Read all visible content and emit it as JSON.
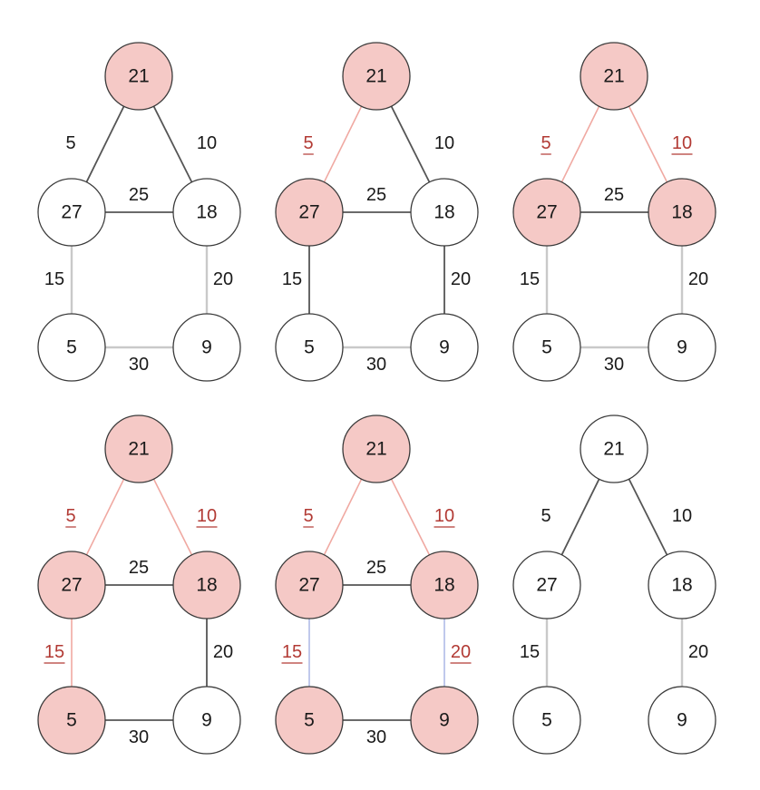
{
  "colors": {
    "visited_fill": "#f5c9c6",
    "unvisited_fill": "#ffffff",
    "node_stroke": "#3a3a3a",
    "text": "#1a1a1a",
    "selected_text": "#b23a34",
    "selected_edge": "#f0a9a2",
    "candidate_edge": "#555555",
    "faint_edge": "#c9c9c9",
    "tie_edge": "#b9c3ea"
  },
  "panels": [
    {
      "nodes": [
        {
          "id": "top",
          "label": "21",
          "visited": true
        },
        {
          "id": "mid-left",
          "label": "27",
          "visited": false
        },
        {
          "id": "mid-right",
          "label": "18",
          "visited": false
        },
        {
          "id": "bottom-left",
          "label": "5",
          "visited": false
        },
        {
          "id": "bottom-right",
          "label": "9",
          "visited": false
        }
      ],
      "edges": [
        {
          "from": "top",
          "to": "mid-left",
          "weight": "5",
          "state": "candidate"
        },
        {
          "from": "top",
          "to": "mid-right",
          "weight": "10",
          "state": "candidate"
        },
        {
          "from": "mid-left",
          "to": "mid-right",
          "weight": "25",
          "state": "candidate"
        },
        {
          "from": "mid-left",
          "to": "bottom-left",
          "weight": "15",
          "state": "faint"
        },
        {
          "from": "mid-right",
          "to": "bottom-right",
          "weight": "20",
          "state": "faint"
        },
        {
          "from": "bottom-left",
          "to": "bottom-right",
          "weight": "30",
          "state": "faint"
        }
      ]
    },
    {
      "nodes": [
        {
          "id": "top",
          "label": "21",
          "visited": true
        },
        {
          "id": "mid-left",
          "label": "27",
          "visited": true
        },
        {
          "id": "mid-right",
          "label": "18",
          "visited": false
        },
        {
          "id": "bottom-left",
          "label": "5",
          "visited": false
        },
        {
          "id": "bottom-right",
          "label": "9",
          "visited": false
        }
      ],
      "edges": [
        {
          "from": "top",
          "to": "mid-left",
          "weight": "5",
          "state": "selected"
        },
        {
          "from": "top",
          "to": "mid-right",
          "weight": "10",
          "state": "candidate"
        },
        {
          "from": "mid-left",
          "to": "mid-right",
          "weight": "25",
          "state": "candidate"
        },
        {
          "from": "mid-left",
          "to": "bottom-left",
          "weight": "15",
          "state": "candidate"
        },
        {
          "from": "mid-right",
          "to": "bottom-right",
          "weight": "20",
          "state": "candidate"
        },
        {
          "from": "bottom-left",
          "to": "bottom-right",
          "weight": "30",
          "state": "faint"
        }
      ]
    },
    {
      "nodes": [
        {
          "id": "top",
          "label": "21",
          "visited": true
        },
        {
          "id": "mid-left",
          "label": "27",
          "visited": true
        },
        {
          "id": "mid-right",
          "label": "18",
          "visited": true
        },
        {
          "id": "bottom-left",
          "label": "5",
          "visited": false
        },
        {
          "id": "bottom-right",
          "label": "9",
          "visited": false
        }
      ],
      "edges": [
        {
          "from": "top",
          "to": "mid-left",
          "weight": "5",
          "state": "selected"
        },
        {
          "from": "top",
          "to": "mid-right",
          "weight": "10",
          "state": "selected"
        },
        {
          "from": "mid-left",
          "to": "mid-right",
          "weight": "25",
          "state": "candidate"
        },
        {
          "from": "mid-left",
          "to": "bottom-left",
          "weight": "15",
          "state": "faint"
        },
        {
          "from": "mid-right",
          "to": "bottom-right",
          "weight": "20",
          "state": "faint"
        },
        {
          "from": "bottom-left",
          "to": "bottom-right",
          "weight": "30",
          "state": "faint"
        }
      ]
    },
    {
      "nodes": [
        {
          "id": "top",
          "label": "21",
          "visited": true
        },
        {
          "id": "mid-left",
          "label": "27",
          "visited": true
        },
        {
          "id": "mid-right",
          "label": "18",
          "visited": true
        },
        {
          "id": "bottom-left",
          "label": "5",
          "visited": true
        },
        {
          "id": "bottom-right",
          "label": "9",
          "visited": false
        }
      ],
      "edges": [
        {
          "from": "top",
          "to": "mid-left",
          "weight": "5",
          "state": "selected"
        },
        {
          "from": "top",
          "to": "mid-right",
          "weight": "10",
          "state": "selected"
        },
        {
          "from": "mid-left",
          "to": "mid-right",
          "weight": "25",
          "state": "candidate"
        },
        {
          "from": "mid-left",
          "to": "bottom-left",
          "weight": "15",
          "state": "selected"
        },
        {
          "from": "mid-right",
          "to": "bottom-right",
          "weight": "20",
          "state": "candidate"
        },
        {
          "from": "bottom-left",
          "to": "bottom-right",
          "weight": "30",
          "state": "candidate"
        }
      ]
    },
    {
      "nodes": [
        {
          "id": "top",
          "label": "21",
          "visited": true
        },
        {
          "id": "mid-left",
          "label": "27",
          "visited": true
        },
        {
          "id": "mid-right",
          "label": "18",
          "visited": true
        },
        {
          "id": "bottom-left",
          "label": "5",
          "visited": true
        },
        {
          "id": "bottom-right",
          "label": "9",
          "visited": true
        }
      ],
      "edges": [
        {
          "from": "top",
          "to": "mid-left",
          "weight": "5",
          "state": "selected"
        },
        {
          "from": "top",
          "to": "mid-right",
          "weight": "10",
          "state": "selected"
        },
        {
          "from": "mid-left",
          "to": "mid-right",
          "weight": "25",
          "state": "candidate"
        },
        {
          "from": "mid-left",
          "to": "bottom-left",
          "weight": "15",
          "state": "tie"
        },
        {
          "from": "mid-right",
          "to": "bottom-right",
          "weight": "20",
          "state": "tie"
        },
        {
          "from": "bottom-left",
          "to": "bottom-right",
          "weight": "30",
          "state": "candidate"
        }
      ]
    },
    {
      "nodes": [
        {
          "id": "top",
          "label": "21",
          "visited": false
        },
        {
          "id": "mid-left",
          "label": "27",
          "visited": false
        },
        {
          "id": "mid-right",
          "label": "18",
          "visited": false
        },
        {
          "id": "bottom-left",
          "label": "5",
          "visited": false
        },
        {
          "id": "bottom-right",
          "label": "9",
          "visited": false
        }
      ],
      "edges": [
        {
          "from": "top",
          "to": "mid-left",
          "weight": "5",
          "state": "candidate"
        },
        {
          "from": "top",
          "to": "mid-right",
          "weight": "10",
          "state": "candidate"
        },
        {
          "from": "mid-left",
          "to": "bottom-left",
          "weight": "15",
          "state": "faint"
        },
        {
          "from": "mid-right",
          "to": "bottom-right",
          "weight": "20",
          "state": "faint"
        }
      ]
    }
  ]
}
